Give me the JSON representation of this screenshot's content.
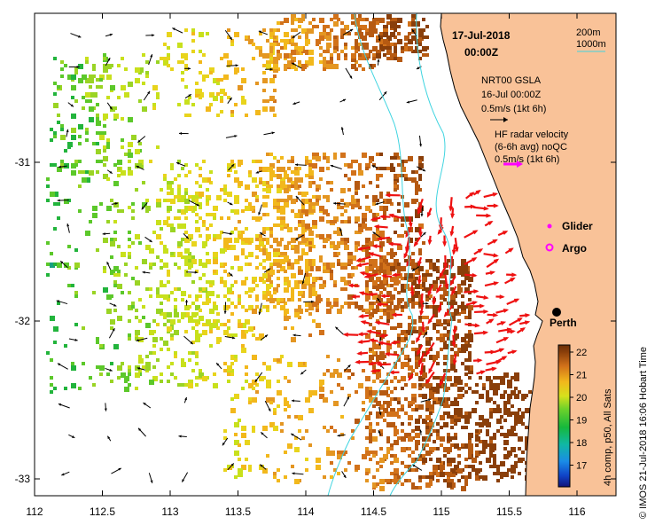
{
  "map": {
    "date": "17-Jul-2018",
    "time": "00:00Z",
    "bathymetry": {
      "contour_a": "200m",
      "contour_b": "1000m"
    },
    "gsla": {
      "title": "NRT00 GSLA",
      "date": "16-Jul 00:00Z",
      "scale": "0.5m/s (1kt 6h)"
    },
    "hf_radar": {
      "title": "HF radar velocity",
      "subtitle": "(6-6h avg) noQC",
      "scale": "0.5m/s (1kt 6h)"
    },
    "markers": {
      "glider": "Glider",
      "argo": "Argo",
      "city": "Perth"
    },
    "colorbar": {
      "title": "4h comp, p50, All Sats",
      "ticks": [
        "22",
        "21",
        "20",
        "19",
        "18",
        "17"
      ]
    },
    "credit": "© IMOS 21-Jul-2018 16:06 Hobart Time",
    "axes": {
      "x_ticks": [
        "112",
        "112.5",
        "113",
        "113.5",
        "114",
        "114.5",
        "115",
        "115.5",
        "116"
      ],
      "y_ticks": [
        "-31",
        "-32",
        "-33"
      ]
    },
    "colors": {
      "land": "#f9c298",
      "contour": "#3fd4e0",
      "radar_arrow": "#ee1111",
      "glider": "#ff00ff",
      "argo": "#ff00ff"
    }
  }
}
